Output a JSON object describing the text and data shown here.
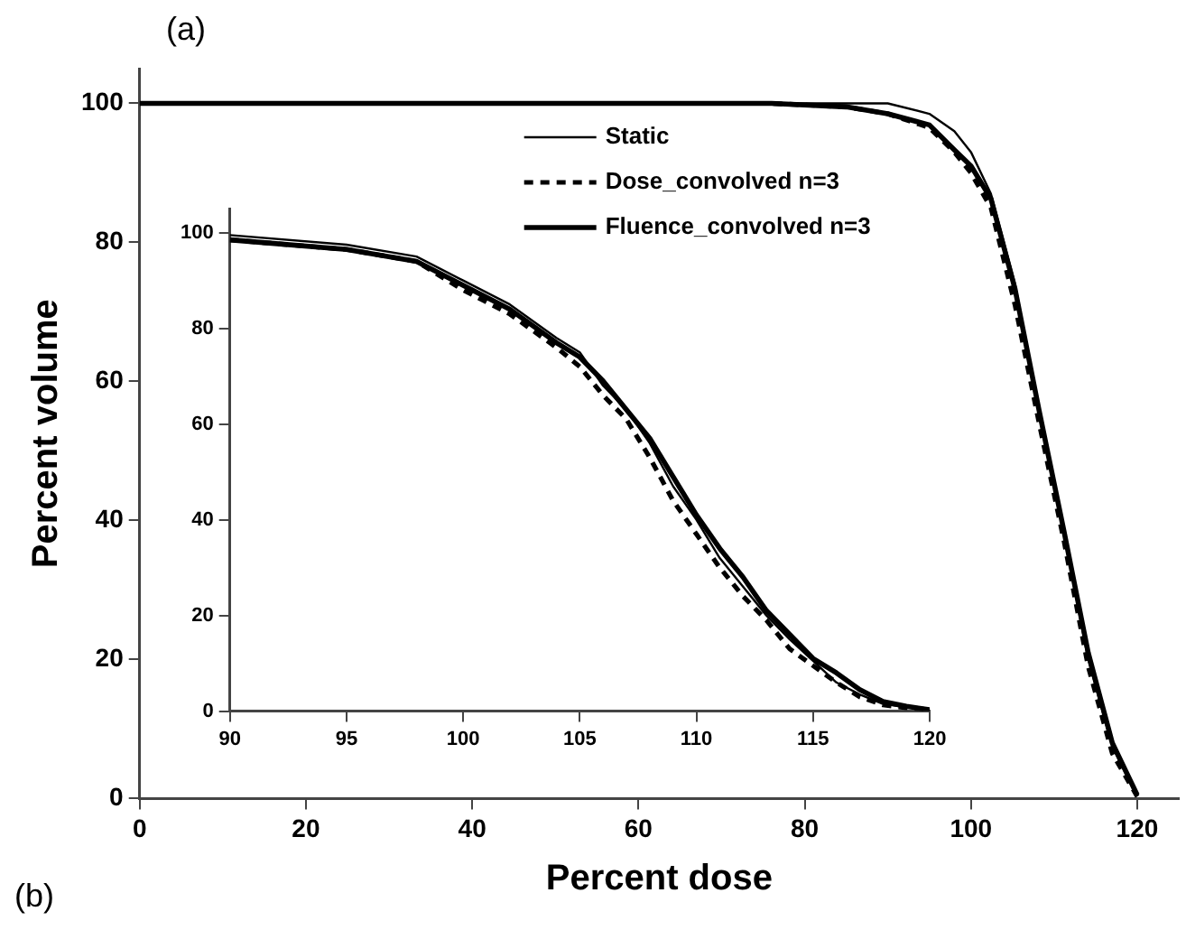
{
  "chart_data": [
    {
      "type": "line",
      "xlabel": "Percent dose",
      "ylabel": "Percent volume",
      "annotations": [
        "(a)",
        "(b)"
      ],
      "xlim": [
        0,
        125
      ],
      "ylim": [
        0,
        105
      ],
      "xticks": [
        0,
        20,
        40,
        60,
        80,
        100,
        120
      ],
      "yticks": [
        0,
        20,
        40,
        60,
        80,
        100
      ],
      "grid": false,
      "legend": "top right",
      "marker": "none",
      "series": [
        {
          "name": "Static",
          "color": "#000000",
          "line_style": "solid",
          "x": [
            0,
            76,
            85,
            90,
            95,
            98,
            100,
            102.4,
            105.3,
            108.2,
            111.2,
            114.1,
            117,
            120
          ],
          "values": [
            100,
            100,
            100,
            100,
            98.5,
            96,
            93,
            87,
            74,
            56,
            38,
            20,
            7.5,
            0.3
          ]
        },
        {
          "name": "Dose_convolved n=3",
          "color": "#000000",
          "line_style": "dashed",
          "x": [
            0,
            76,
            85,
            90,
            95,
            98,
            100,
            102.4,
            105.3,
            108.2,
            111.2,
            114.1,
            117,
            120
          ],
          "values": [
            100,
            100,
            99.5,
            98.5,
            96.5,
            93,
            90,
            85,
            71,
            54,
            37,
            19,
            6.5,
            0.3
          ]
        },
        {
          "name": "Fluence_convolved n=3",
          "color": "#000000",
          "line_style": "solid",
          "x": [
            0,
            76,
            85,
            90,
            95,
            98,
            100,
            102.4,
            105.3,
            108.2,
            111.2,
            114.1,
            117,
            120
          ],
          "values": [
            100,
            100,
            99.5,
            98.5,
            96.9,
            93.3,
            91,
            86.3,
            73.3,
            55.8,
            38.4,
            21,
            8,
            0.5
          ]
        }
      ]
    },
    {
      "type": "line",
      "xlim": [
        90,
        120
      ],
      "ylim": [
        0,
        105
      ],
      "xticks": [
        90,
        95,
        100,
        105,
        110,
        115,
        120
      ],
      "yticks": [
        0,
        20,
        40,
        60,
        80,
        100
      ],
      "grid": false,
      "legend": false,
      "marker": "none",
      "series": [
        {
          "color": "#000000",
          "line_style": "solid",
          "x": [
            90,
            95,
            98,
            100,
            102,
            104,
            105,
            106,
            107,
            108,
            109,
            110,
            111,
            112,
            113,
            114,
            115,
            116,
            117,
            118,
            119,
            120
          ],
          "values": [
            99.5,
            97.5,
            95,
            90,
            85,
            78,
            75,
            68,
            63,
            56,
            47,
            40,
            32,
            26,
            20,
            15,
            10.5,
            6,
            3.5,
            1.5,
            0.8,
            0.3
          ]
        },
        {
          "color": "#000000",
          "line_style": "dashed",
          "x": [
            90,
            95,
            98,
            100,
            102,
            104,
            105,
            106,
            107,
            108,
            109,
            110,
            111,
            112,
            113,
            114,
            115,
            116,
            117,
            118,
            119,
            120
          ],
          "values": [
            98.5,
            96.5,
            94,
            88,
            83,
            76,
            72,
            66,
            61,
            53,
            44,
            37,
            30,
            24,
            19,
            13,
            9.5,
            6,
            3,
            1.3,
            0.7,
            0.3
          ]
        },
        {
          "color": "#000000",
          "line_style": "solid",
          "x": [
            90,
            95,
            98,
            100,
            102,
            104,
            105,
            106,
            107,
            108,
            109,
            110,
            111,
            112,
            113,
            114,
            115,
            116,
            117,
            118,
            119,
            120
          ],
          "values": [
            98.5,
            96.5,
            94,
            89,
            84,
            77,
            74,
            69,
            63,
            57,
            49,
            41,
            34,
            28,
            21,
            16,
            11,
            8,
            4.5,
            2,
            1,
            0.3
          ]
        }
      ]
    }
  ]
}
